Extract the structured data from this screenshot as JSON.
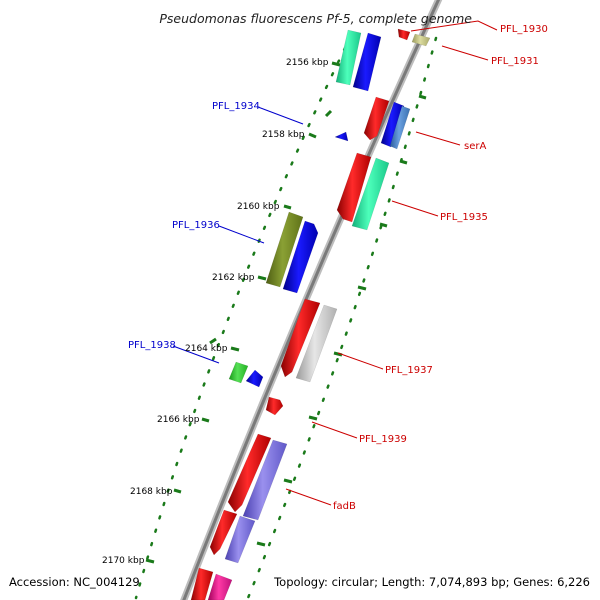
{
  "title": "Pseudomonas fluorescens Pf-5, complete genome",
  "footer": {
    "accession": "Accession: NC_004129",
    "summary": "Topology: circular; Length: 7,074,893 bp; Genes: 6,226"
  },
  "colors": {
    "forward_label": "#cc0000",
    "reverse_label": "#0000cc",
    "tick": "#1a7a1a",
    "backbone": "#888888"
  },
  "ruler": {
    "unit": "kbp",
    "labels": [
      {
        "kbp": 2156,
        "text": "2156 kbp"
      },
      {
        "kbp": 2158,
        "text": "2158 kbp"
      },
      {
        "kbp": 2160,
        "text": "2160 kbp"
      },
      {
        "kbp": 2162,
        "text": "2162 kbp"
      },
      {
        "kbp": 2164,
        "text": "2164 kbp"
      },
      {
        "kbp": 2166,
        "text": "2166 kbp"
      },
      {
        "kbp": 2168,
        "text": "2168 kbp"
      },
      {
        "kbp": 2170,
        "text": "2170 kbp"
      }
    ]
  },
  "gene_labels": [
    {
      "id": "PFL_1930",
      "text": "PFL_1930",
      "strand": "forward"
    },
    {
      "id": "PFL_1931",
      "text": "PFL_1931",
      "strand": "forward"
    },
    {
      "id": "PFL_1934",
      "text": "PFL_1934",
      "strand": "reverse"
    },
    {
      "id": "serA",
      "text": "serA",
      "strand": "forward"
    },
    {
      "id": "PFL_1935",
      "text": "PFL_1935",
      "strand": "forward"
    },
    {
      "id": "PFL_1936",
      "text": "PFL_1936",
      "strand": "reverse"
    },
    {
      "id": "PFL_1937",
      "text": "PFL_1937",
      "strand": "forward"
    },
    {
      "id": "PFL_1938",
      "text": "PFL_1938",
      "strand": "reverse"
    },
    {
      "id": "PFL_1939",
      "text": "PFL_1939",
      "strand": "forward"
    },
    {
      "id": "fadB",
      "text": "fadB",
      "strand": "forward"
    }
  ]
}
